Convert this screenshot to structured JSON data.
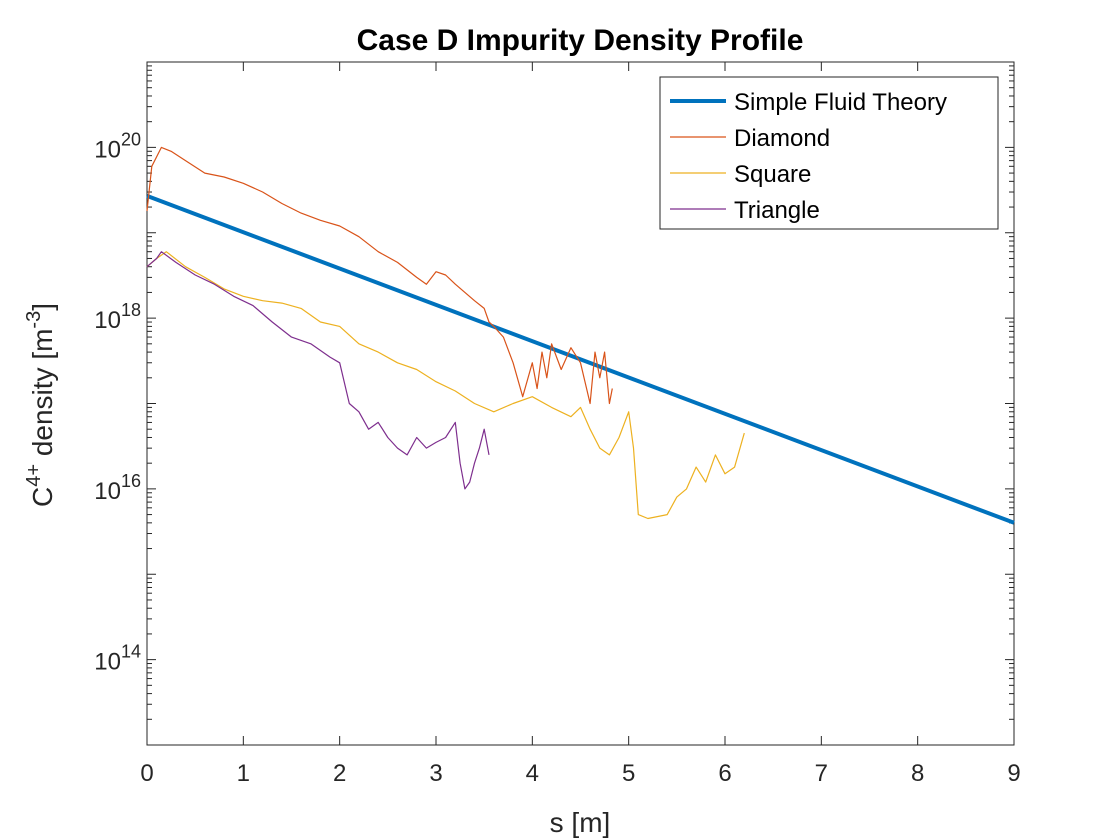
{
  "chart_data": {
    "type": "line",
    "title": "Case D Impurity Density Profile",
    "xlabel": "s [m]",
    "ylabel": {
      "base": "C",
      "sup": "4+",
      "rest": " density [m",
      "unit_sup": "-3",
      "close": "]"
    },
    "xlim": [
      0,
      9
    ],
    "ylim": [
      10000000000000.0,
      1e+21
    ],
    "yscale": "log",
    "x_ticks": [
      0,
      1,
      2,
      3,
      4,
      5,
      6,
      7,
      8,
      9
    ],
    "x_tick_labels": [
      "0",
      "1",
      "2",
      "3",
      "4",
      "5",
      "6",
      "7",
      "8",
      "9"
    ],
    "y_ticks": [
      {
        "value": 100000000000000.0,
        "base": "10",
        "exp": "14"
      },
      {
        "value": 1e+16,
        "base": "10",
        "exp": "16"
      },
      {
        "value": 1e+18,
        "base": "10",
        "exp": "18"
      },
      {
        "value": 1e+20,
        "base": "10",
        "exp": "20"
      }
    ],
    "grid": false,
    "legend_position": "top-right",
    "series": [
      {
        "name": "Simple Fluid Theory",
        "color": "#0072BD",
        "width": "thick",
        "x": [
          0,
          9
        ],
        "y": [
          2.7e+19,
          4000000000000000.0
        ]
      },
      {
        "name": "Diamond",
        "color": "#D95319",
        "width": "thin",
        "x": [
          0,
          0.05,
          0.15,
          0.25,
          0.4,
          0.6,
          0.8,
          1.0,
          1.2,
          1.4,
          1.6,
          1.8,
          2.0,
          2.2,
          2.4,
          2.6,
          2.8,
          2.9,
          3.0,
          3.1,
          3.2,
          3.3,
          3.4,
          3.5,
          3.55,
          3.6,
          3.7,
          3.8,
          3.9,
          4.0,
          4.05,
          4.1,
          4.15,
          4.2,
          4.3,
          4.4,
          4.5,
          4.6,
          4.65,
          4.7,
          4.75,
          4.8,
          4.83
        ],
        "y": [
          1.8e+19,
          6e+19,
          1e+20,
          9e+19,
          7e+19,
          5e+19,
          4.5e+19,
          3.8e+19,
          3e+19,
          2.2e+19,
          1.7e+19,
          1.4e+19,
          1.2e+19,
          9e+18,
          6e+18,
          4.5e+18,
          3e+18,
          2.5e+18,
          3.5e+18,
          3.2e+18,
          2.5e+18,
          2e+18,
          1.6e+18,
          1.3e+18,
          9e+17,
          8e+17,
          6e+17,
          3e+17,
          1.2e+17,
          3e+17,
          1.5e+17,
          4e+17,
          2e+17,
          5e+17,
          2.5e+17,
          4.5e+17,
          3e+17,
          1e+17,
          4e+17,
          2e+17,
          4e+17,
          1e+17,
          1.5e+17
        ]
      },
      {
        "name": "Square",
        "color": "#EDB120",
        "width": "thin",
        "x": [
          0,
          0.1,
          0.2,
          0.4,
          0.6,
          0.8,
          1.0,
          1.2,
          1.4,
          1.6,
          1.8,
          2.0,
          2.2,
          2.4,
          2.6,
          2.8,
          3.0,
          3.2,
          3.4,
          3.6,
          3.8,
          4.0,
          4.2,
          4.4,
          4.5,
          4.6,
          4.7,
          4.8,
          4.9,
          5.0,
          5.05,
          5.1,
          5.2,
          5.4,
          5.5,
          5.6,
          5.7,
          5.8,
          5.9,
          6.0,
          6.1,
          6.2
        ],
        "y": [
          4e+18,
          5e+18,
          6e+18,
          4e+18,
          3e+18,
          2.2e+18,
          1.8e+18,
          1.6e+18,
          1.5e+18,
          1.3e+18,
          9e+17,
          8e+17,
          5e+17,
          4e+17,
          3e+17,
          2.5e+17,
          1.8e+17,
          1.4e+17,
          1e+17,
          8e+16,
          1e+17,
          1.2e+17,
          9e+16,
          7e+16,
          9e+16,
          5e+16,
          3e+16,
          2.5e+16,
          4e+16,
          8e+16,
          3e+16,
          5000000000000000.0,
          4500000000000000.0,
          5000000000000000.0,
          8000000000000000.0,
          1e+16,
          1.8e+16,
          1.2e+16,
          2.5e+16,
          1.5e+16,
          1.8e+16,
          4.5e+16
        ]
      },
      {
        "name": "Triangle",
        "color": "#7E2F8E",
        "width": "thin",
        "x": [
          0,
          0.1,
          0.15,
          0.3,
          0.5,
          0.7,
          0.9,
          1.1,
          1.3,
          1.5,
          1.7,
          1.9,
          2.0,
          2.1,
          2.2,
          2.3,
          2.4,
          2.5,
          2.6,
          2.7,
          2.8,
          2.9,
          3.0,
          3.1,
          3.2,
          3.25,
          3.3,
          3.35,
          3.4,
          3.45,
          3.5,
          3.55
        ],
        "y": [
          4e+18,
          5e+18,
          6e+18,
          4.5e+18,
          3.2e+18,
          2.5e+18,
          1.8e+18,
          1.4e+18,
          9e+17,
          6e+17,
          5e+17,
          3.5e+17,
          3e+17,
          1e+17,
          8e+16,
          5e+16,
          6e+16,
          4e+16,
          3e+16,
          2.5e+16,
          4e+16,
          3e+16,
          3.5e+16,
          4e+16,
          6e+16,
          2e+16,
          1e+16,
          1.2e+16,
          2e+16,
          3e+16,
          5e+16,
          2.5e+16
        ]
      }
    ]
  }
}
